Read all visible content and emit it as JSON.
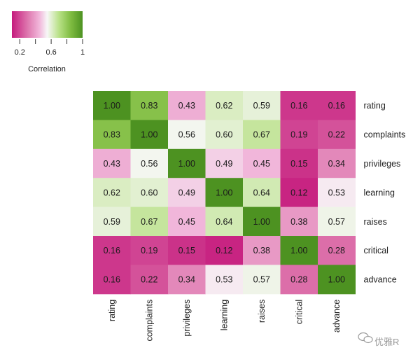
{
  "chart_data": {
    "type": "heatmap",
    "rows": [
      "rating",
      "complaints",
      "privileges",
      "learning",
      "raises",
      "critical",
      "advance"
    ],
    "cols": [
      "rating",
      "complaints",
      "privileges",
      "learning",
      "raises",
      "critical",
      "advance"
    ],
    "values": [
      [
        1.0,
        0.83,
        0.43,
        0.62,
        0.59,
        0.16,
        0.16
      ],
      [
        0.83,
        1.0,
        0.56,
        0.6,
        0.67,
        0.19,
        0.22
      ],
      [
        0.43,
        0.56,
        1.0,
        0.49,
        0.45,
        0.15,
        0.34
      ],
      [
        0.62,
        0.6,
        0.49,
        1.0,
        0.64,
        0.12,
        0.53
      ],
      [
        0.59,
        0.67,
        0.45,
        0.64,
        1.0,
        0.38,
        0.57
      ],
      [
        0.16,
        0.19,
        0.15,
        0.12,
        0.38,
        1.0,
        0.28
      ],
      [
        0.16,
        0.22,
        0.34,
        0.53,
        0.57,
        0.28,
        1.0
      ]
    ],
    "value_format_decimals": 2,
    "legend": {
      "title": "Correlation",
      "range": [
        0.1,
        1.0
      ],
      "ticks": [
        {
          "value": 0.2,
          "label": "0.2"
        },
        {
          "value": 0.6,
          "label": "0.6"
        },
        {
          "value": 1.0,
          "label": "1"
        }
      ],
      "minor_ticks": [
        0.4,
        0.8
      ],
      "placement": "top-left"
    },
    "colorscale": [
      {
        "value": 0.1,
        "color": "#C51B7D"
      },
      {
        "value": 0.3,
        "color": "#DE77AE"
      },
      {
        "value": 0.45,
        "color": "#F1B6DA"
      },
      {
        "value": 0.55,
        "color": "#F7F7F7"
      },
      {
        "value": 0.7,
        "color": "#B8E186"
      },
      {
        "value": 0.85,
        "color": "#7FBC41"
      },
      {
        "value": 1.0,
        "color": "#4D9221"
      }
    ]
  },
  "watermark": {
    "text": "优雅R",
    "icon": "wechat-icon"
  }
}
